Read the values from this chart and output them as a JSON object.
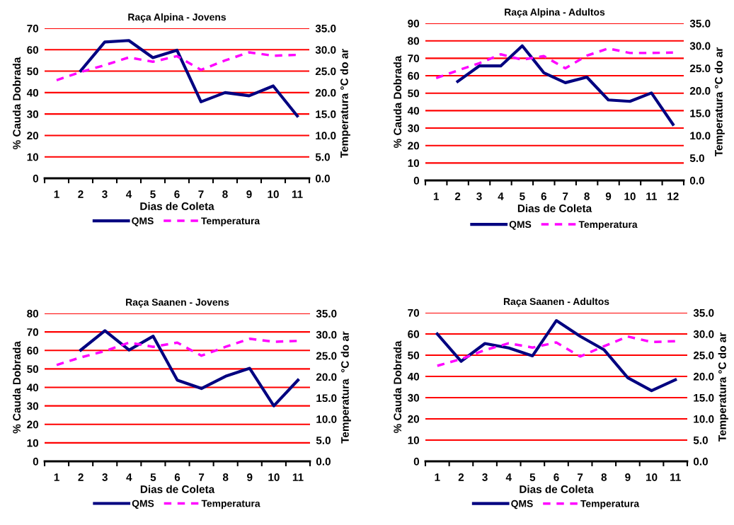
{
  "chart_data": [
    {
      "type": "line",
      "title": "Raça Alpina - Jovens",
      "xlabel": "Dias de Coleta",
      "ylabel": "% Cauda Dobrada",
      "y2label": "Temperatura °C do ar",
      "categories": [
        "1",
        "2",
        "3",
        "4",
        "5",
        "6",
        "7",
        "8",
        "9",
        "10",
        "11"
      ],
      "series": [
        {
          "name": "QMS",
          "color": "#000080",
          "line_style": "solid",
          "values": [
            null,
            50.2,
            63.6,
            64.3,
            56.3,
            59.8,
            35.7,
            40,
            38.5,
            43.1,
            29.1
          ]
        },
        {
          "name": "Temperatura",
          "color": "#ff00ff",
          "line_style": "dashed",
          "axis": "y2",
          "values": [
            22.9,
            24.8,
            26.4,
            28.2,
            27.2,
            28.5,
            25.3,
            27.5,
            29.4,
            28.6,
            28.8
          ]
        }
      ],
      "ylim": [
        0,
        70
      ],
      "yticks": [
        0,
        10,
        20,
        30,
        40,
        50,
        60,
        70
      ],
      "y2lim": [
        0,
        35
      ],
      "y2ticks": [
        {
          "value": 0,
          "label": "0.0"
        },
        {
          "value": 5,
          "label": "5.0"
        },
        {
          "value": 10,
          "label": "10.0"
        },
        {
          "value": 15,
          "label": "15.0"
        },
        {
          "value": 20,
          "label": "20.0"
        },
        {
          "value": 25,
          "label": "25.0"
        },
        {
          "value": 30,
          "label": "30.0"
        },
        {
          "value": 35,
          "label": "35.0"
        }
      ],
      "grid": "y",
      "legend": "bottom"
    },
    {
      "type": "line",
      "title": "Raça Alpina - Adultos",
      "xlabel": "Dias de Coleta",
      "ylabel": "% Cauda Dobrada",
      "y2label": "Temperatura °C do ar",
      "categories": [
        "1",
        "2",
        "3",
        "4",
        "5",
        "6",
        "7",
        "8",
        "9",
        "10",
        "11",
        "12"
      ],
      "series": [
        {
          "name": "QMS",
          "color": "#000080",
          "line_style": "solid",
          "values": [
            null,
            56.7,
            65.6,
            65.6,
            77.1,
            61.7,
            56,
            59.2,
            46.1,
            45.3,
            50.1,
            32.1
          ]
        },
        {
          "name": "Temperatura",
          "color": "#ff00ff",
          "line_style": "dashed",
          "axis": "y2",
          "values": [
            22.8,
            24.5,
            26.1,
            28.1,
            26.9,
            27.7,
            25.0,
            27.8,
            29.4,
            28.4,
            28.4,
            28.5
          ]
        }
      ],
      "ylim": [
        0,
        90
      ],
      "yticks": [
        0,
        10,
        20,
        30,
        40,
        50,
        60,
        70,
        80,
        90
      ],
      "y2lim": [
        0,
        35
      ],
      "y2ticks": [
        {
          "value": 0,
          "label": "0.0"
        },
        {
          "value": 5,
          "label": "5.0"
        },
        {
          "value": 10,
          "label": "10.0"
        },
        {
          "value": 15,
          "label": "15.0"
        },
        {
          "value": 20,
          "label": "20.0"
        },
        {
          "value": 25,
          "label": "25.0"
        },
        {
          "value": 30,
          "label": "30.0"
        },
        {
          "value": 35,
          "label": "35.0"
        }
      ],
      "grid": "y",
      "legend": "bottom"
    },
    {
      "type": "line",
      "title": "Raça Saanen - Jovens",
      "xlabel": "Dias de Coleta",
      "ylabel": "% Cauda Dobrada",
      "y2label": "Temperatura  °C do ar",
      "categories": [
        "1",
        "2",
        "3",
        "4",
        "5",
        "6",
        "7",
        "8",
        "9",
        "10",
        "11"
      ],
      "series": [
        {
          "name": "QMS",
          "color": "#000080",
          "line_style": "solid",
          "values": [
            null,
            60.2,
            70.7,
            60.2,
            67.7,
            43.9,
            39.4,
            46,
            50.3,
            30,
            43.9
          ]
        },
        {
          "name": "Temperatura",
          "color": "#ff00ff",
          "line_style": "dashed",
          "axis": "y2",
          "values": [
            22.8,
            24.6,
            26.1,
            28.1,
            27.1,
            28.1,
            25.0,
            27.1,
            29.0,
            28.3,
            28.5
          ]
        }
      ],
      "ylim": [
        0,
        80
      ],
      "yticks": [
        0,
        10,
        20,
        30,
        40,
        50,
        60,
        70,
        80
      ],
      "y2lim": [
        0,
        35
      ],
      "y2ticks": [
        {
          "value": 0,
          "label": "0.0"
        },
        {
          "value": 5,
          "label": "5.0"
        },
        {
          "value": 10,
          "label": "10.0"
        },
        {
          "value": 15,
          "label": "15.0"
        },
        {
          "value": 20,
          "label": "20.0"
        },
        {
          "value": 25,
          "label": "25.0"
        },
        {
          "value": 30,
          "label": "30.0"
        },
        {
          "value": 35,
          "label": "35.0"
        }
      ],
      "grid": "y",
      "legend": "bottom"
    },
    {
      "type": "line",
      "title": "Raça Saanen - Adultos",
      "xlabel": "Dias de Coleta",
      "ylabel": "% Cauda Dobrada",
      "y2label": "Temperatura °C do ar",
      "categories": [
        "1",
        "2",
        "3",
        "4",
        "5",
        "6",
        "7",
        "8",
        "9",
        "10",
        "11"
      ],
      "series": [
        {
          "name": "QMS",
          "color": "#000080",
          "line_style": "solid",
          "values": [
            60,
            47.1,
            55.5,
            53.4,
            49.7,
            66.3,
            58.9,
            52.6,
            39.4,
            33.3,
            38.4
          ]
        },
        {
          "name": "Temperatura",
          "color": "#ff00ff",
          "line_style": "dashed",
          "axis": "y2",
          "values": [
            22.5,
            24.1,
            26.2,
            27.8,
            26.8,
            28.0,
            24.7,
            27.1,
            29.4,
            28.1,
            28.3
          ]
        }
      ],
      "ylim": [
        0,
        70
      ],
      "yticks": [
        0,
        10,
        20,
        30,
        40,
        50,
        60,
        70
      ],
      "y2lim": [
        0,
        35
      ],
      "y2ticks": [
        {
          "value": 0,
          "label": "0.0"
        },
        {
          "value": 5,
          "label": "5.0"
        },
        {
          "value": 10,
          "label": "10.0"
        },
        {
          "value": 15,
          "label": "15.0"
        },
        {
          "value": 20,
          "label": "20.0"
        },
        {
          "value": 25,
          "label": "25.0"
        },
        {
          "value": 30,
          "label": "30.0"
        },
        {
          "value": 35,
          "label": "35.0"
        }
      ],
      "grid": "y",
      "legend": "bottom"
    }
  ]
}
